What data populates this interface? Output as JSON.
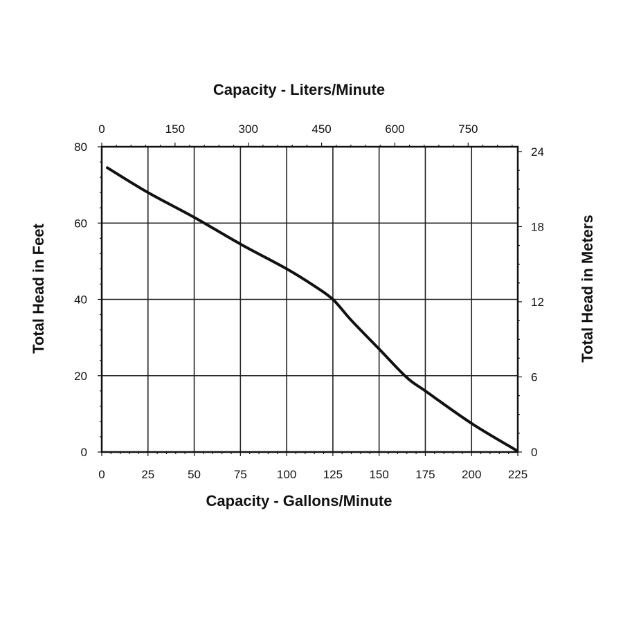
{
  "chart_data": {
    "type": "line",
    "top_axis_title": "Capacity - Liters/Minute",
    "xlabel": "Capacity - Gallons/Minute",
    "ylabel": "Total Head in Feet",
    "ylabel_right": "Total Head in Meters",
    "xlim": [
      0,
      225
    ],
    "ylim": [
      0,
      80
    ],
    "x_ticks": [
      "0",
      "25",
      "50",
      "75",
      "100",
      "125",
      "150",
      "175",
      "200",
      "225"
    ],
    "y_ticks": [
      "0",
      "20",
      "40",
      "60",
      "80"
    ],
    "top_ticks": [
      "0",
      "150",
      "300",
      "450",
      "600",
      "750"
    ],
    "top_lim": [
      0,
      851.6
    ],
    "right_ticks": [
      "0",
      "6",
      "12",
      "18",
      "24"
    ],
    "right_lim": [
      0,
      24.38
    ],
    "grid": true,
    "series": [
      {
        "x": [
          3,
          25,
          50,
          75,
          100,
          115,
          125,
          135,
          150,
          165,
          175,
          200,
          224
        ],
        "y": [
          74.5,
          68,
          61.5,
          54.5,
          48,
          43.5,
          40,
          34.5,
          27,
          19.5,
          16,
          7.5,
          0.5
        ]
      }
    ],
    "colors": {
      "line": "#111111",
      "grid": "#222222"
    }
  }
}
